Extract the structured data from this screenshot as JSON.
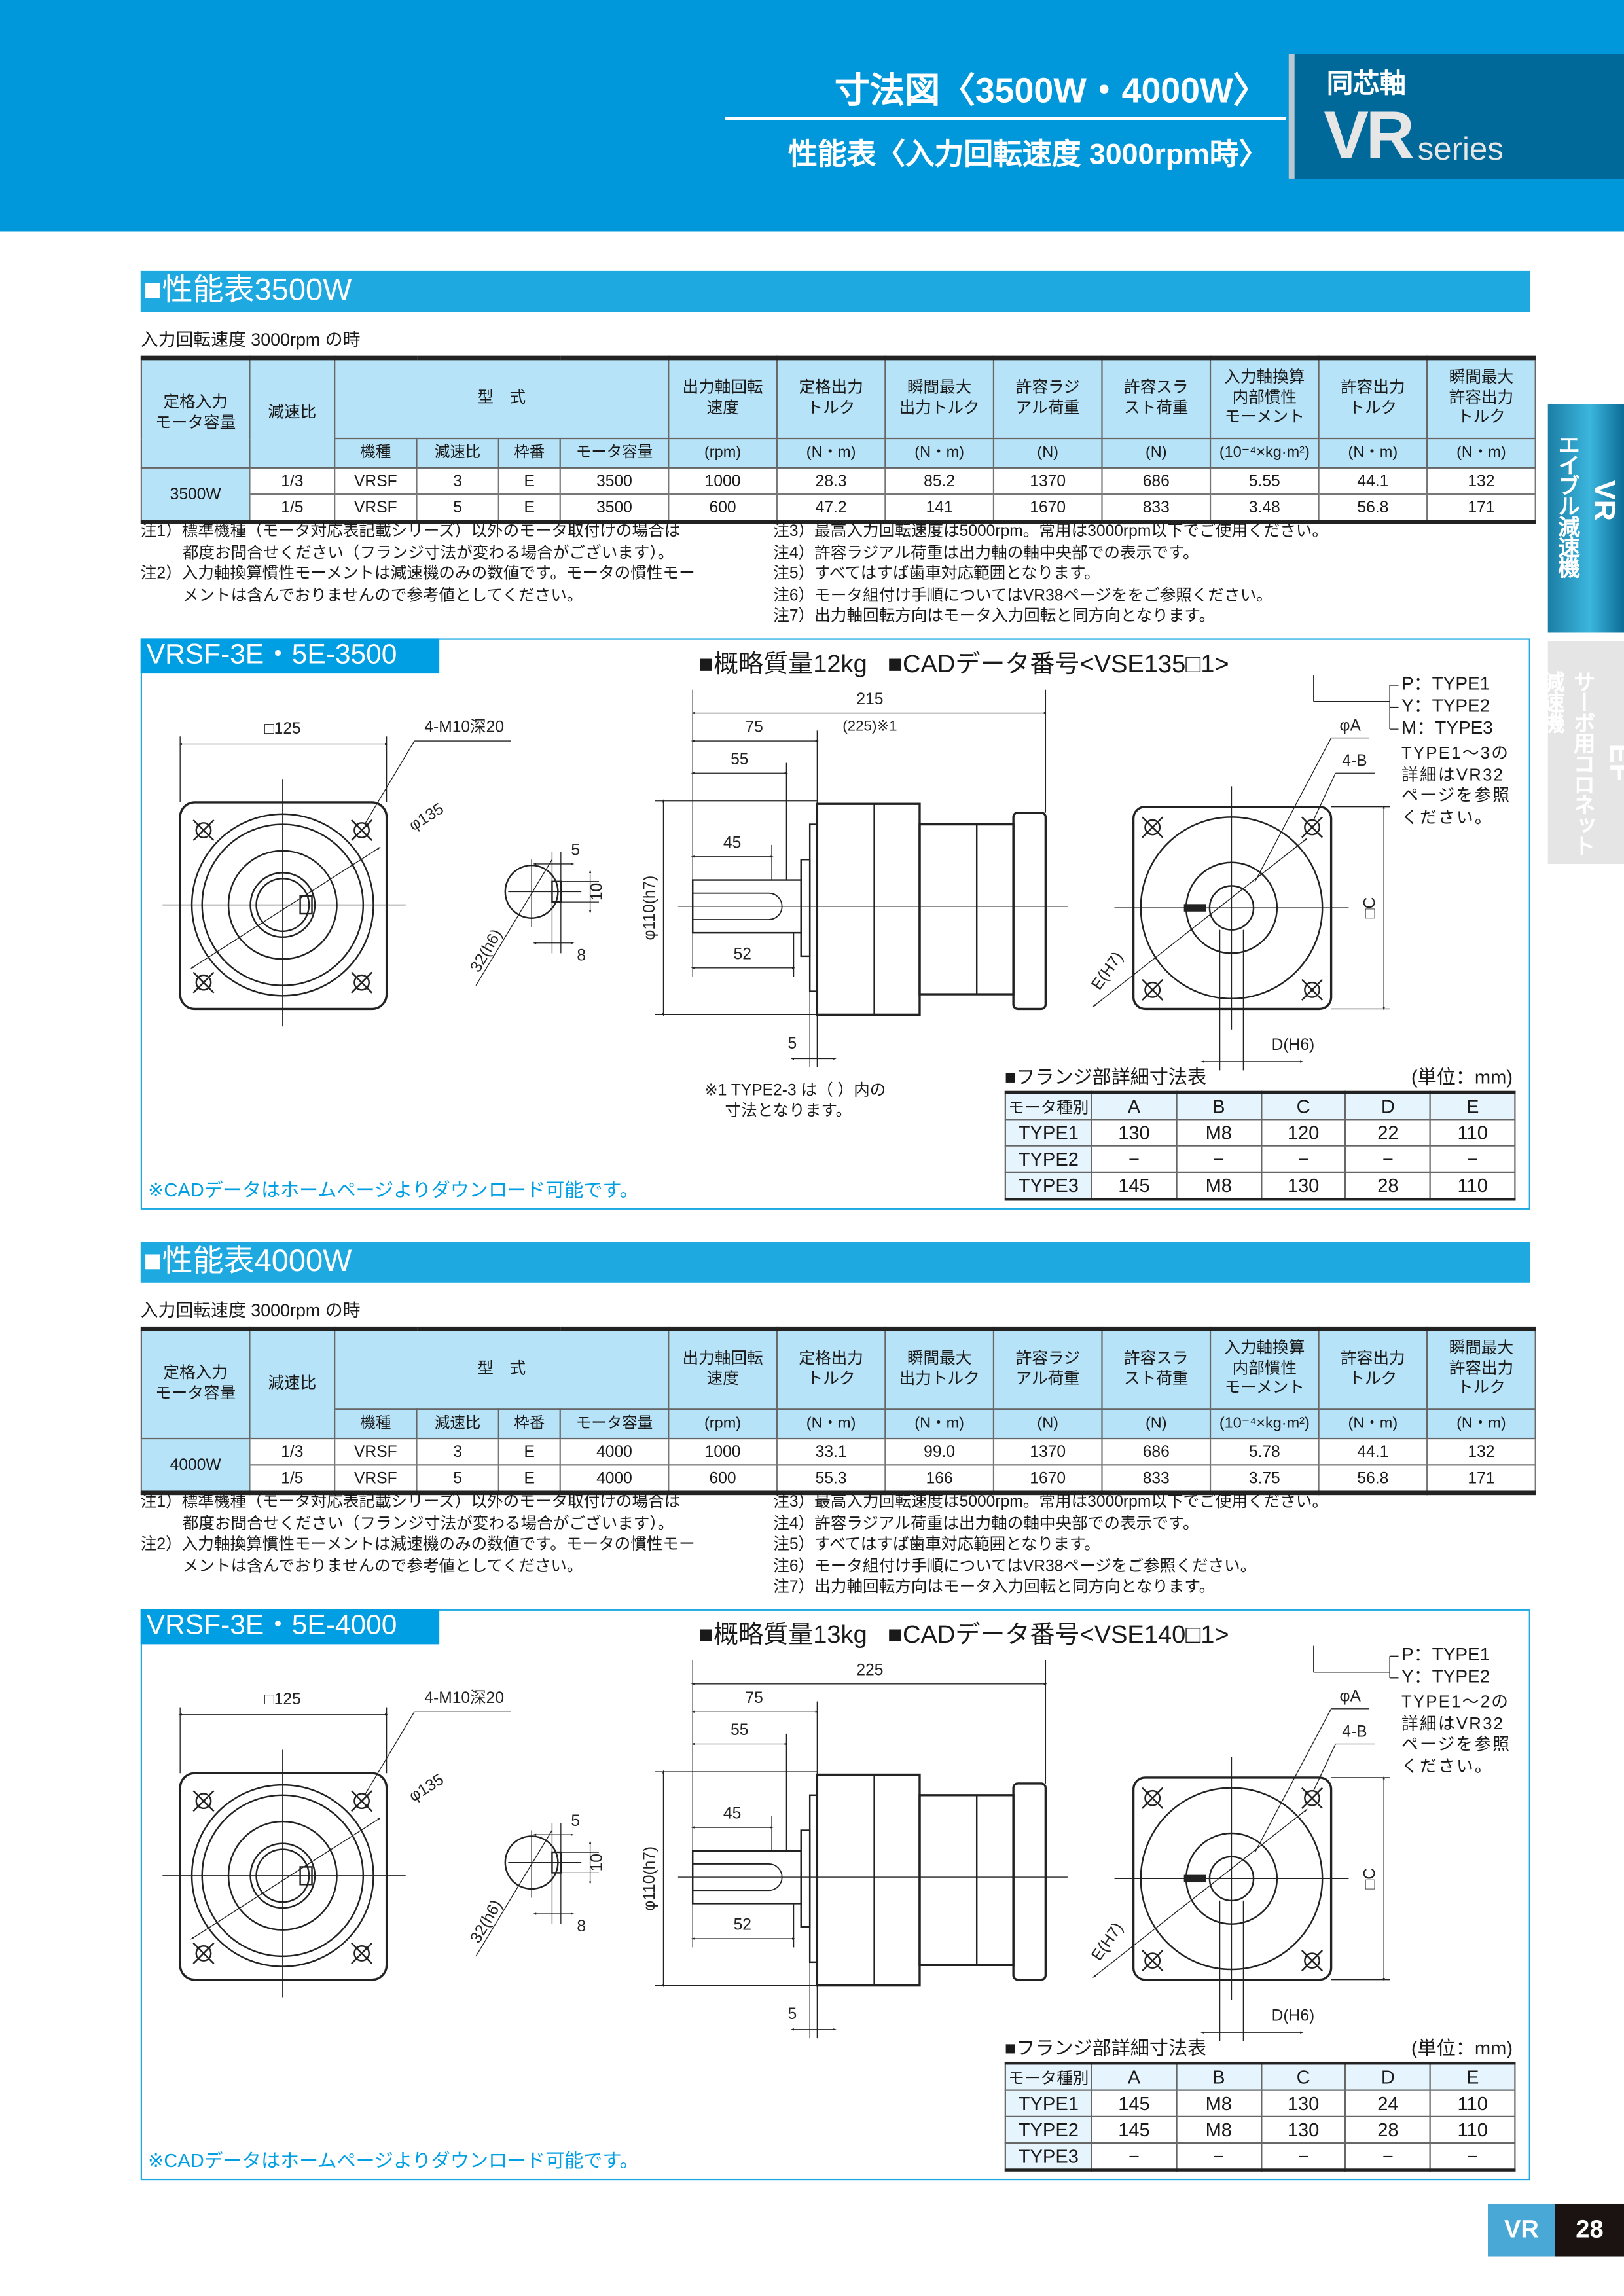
{
  "header": {
    "title_main": "寸法図〈3500W・4000W〉",
    "title_sub": "性能表〈入力回転速度 3000rpm時〉",
    "category": "同芯軸",
    "series_big": "VR",
    "series_small": "series"
  },
  "side_tabs": [
    {
      "label": "エイブル減速機",
      "letters": "VR",
      "active": true
    },
    {
      "label": "サーボ用コロネット減速機",
      "letters": "EF",
      "active": false
    }
  ],
  "perf_table_header": {
    "capacity": "定格入力\nモータ容量",
    "ratio": "減速比",
    "model_group": "型　式",
    "model_sub": [
      "機種",
      "減速比",
      "枠番",
      "モータ容量"
    ],
    "specs": [
      {
        "label": "出力軸回転\n速度",
        "unit": "(rpm)"
      },
      {
        "label": "定格出力\nトルク",
        "unit": "(N・m)"
      },
      {
        "label": "瞬間最大\n出力トルク",
        "unit": "(N・m)"
      },
      {
        "label": "許容ラジ\nアル荷重",
        "unit": "(N)"
      },
      {
        "label": "許容スラ\nスト荷重",
        "unit": "(N)"
      },
      {
        "label": "入力軸換算\n内部慣性\nモーメント",
        "unit": "(10⁻⁴×kg·m²)"
      },
      {
        "label": "許容出力\nトルク",
        "unit": "(N・m)"
      },
      {
        "label": "瞬間最大\n許容出力\nトルク",
        "unit": "(N・m)"
      }
    ]
  },
  "sections": [
    {
      "title": "■性能表3500W",
      "condition": "入力回転速度 3000rpm の時",
      "capacity": "3500W",
      "rows": [
        [
          "1/3",
          "VRSF",
          "3",
          "E",
          "3500",
          "1000",
          "28.3",
          "85.2",
          "1370",
          "686",
          "5.55",
          "44.1",
          "132"
        ],
        [
          "1/5",
          "VRSF",
          "5",
          "E",
          "3500",
          "600",
          "47.2",
          "141",
          "1670",
          "833",
          "3.48",
          "56.8",
          "171"
        ]
      ],
      "notes_left": [
        "注1）標準機種（モータ対応表記載シリーズ）以外のモータ取付けの場合は\n都度お問合せください（フランジ寸法が変わる場合がございます）。",
        "注2）入力軸換算慣性モーメントは減速機のみの数値です。モータの慣性モー\nメントは含んでおりませんので参考値としてください。"
      ],
      "notes_right": [
        "注3）最高入力回転速度は5000rpm。常用は3000rpm以下でご使用ください。",
        "注4）許容ラジアル荷重は出力軸の軸中央部での表示です。",
        "注5）すべてはすば歯車対応範囲となります。",
        "注6）モータ組付け手順についてはVR38ページををご参照ください。",
        "注7）出力軸回転方向はモータ入力回転と同方向となります。"
      ],
      "drawing": {
        "title": "VRSF-3E・5E-3500",
        "mass": "■概略質量12kg",
        "cad": "■CADデータ番号<VSE135□1>",
        "type_codes": [
          "P：TYPE1",
          "Y：TYPE2",
          "M：TYPE3"
        ],
        "type_note": "TYPE1〜3の\n詳細はVR32\nページを参照\nください。",
        "dims": {
          "sq": "□125",
          "tap": "4-M10深20",
          "pcd": "φ135",
          "key_w": "5",
          "key_h": "10",
          "key_off": "8",
          "shaft_d": "32(h6)",
          "spigot": "φ110(h7)",
          "total": "215",
          "total_alt": "(225)※1",
          "d75": "75",
          "d55": "55",
          "d45": "45",
          "d52": "52",
          "d5": "5",
          "phiA": "φA",
          "holes": "4-B",
          "E": "E(H7)",
          "C": "□C",
          "D": "D(H6)"
        },
        "footnote": "※1 TYPE2-3 は（ ）内の\n　 寸法となります。",
        "flange": {
          "title": "■フランジ部詳細寸法表",
          "unit": "(単位：mm)",
          "headers": [
            "モータ種別",
            "A",
            "B",
            "C",
            "D",
            "E"
          ],
          "rows": [
            [
              "TYPE1",
              "130",
              "M8",
              "120",
              "22",
              "110"
            ],
            [
              "TYPE2",
              "−",
              "−",
              "−",
              "−",
              "−"
            ],
            [
              "TYPE3",
              "145",
              "M8",
              "130",
              "28",
              "110"
            ]
          ]
        },
        "cad_note": "※CADデータはホームページよりダウンロード可能です。"
      }
    },
    {
      "title": "■性能表4000W",
      "condition": "入力回転速度 3000rpm の時",
      "capacity": "4000W",
      "rows": [
        [
          "1/3",
          "VRSF",
          "3",
          "E",
          "4000",
          "1000",
          "33.1",
          "99.0",
          "1370",
          "686",
          "5.78",
          "44.1",
          "132"
        ],
        [
          "1/5",
          "VRSF",
          "5",
          "E",
          "4000",
          "600",
          "55.3",
          "166",
          "1670",
          "833",
          "3.75",
          "56.8",
          "171"
        ]
      ],
      "notes_left": [
        "注1）標準機種（モータ対応表記載シリーズ）以外のモータ取付けの場合は\n都度お問合せください（フランジ寸法が変わる場合がございます）。",
        "注2）入力軸換算慣性モーメントは減速機のみの数値です。モータの慣性モー\nメントは含んでおりませんので参考値としてください。"
      ],
      "notes_right": [
        "注3）最高入力回転速度は5000rpm。常用は3000rpm以下でご使用ください。",
        "注4）許容ラジアル荷重は出力軸の軸中央部での表示です。",
        "注5）すべてはすば歯車対応範囲となります。",
        "注6）モータ組付け手順についてはVR38ページをご参照ください。",
        "注7）出力軸回転方向はモータ入力回転と同方向となります。"
      ],
      "drawing": {
        "title": "VRSF-3E・5E-4000",
        "mass": "■概略質量13kg",
        "cad": "■CADデータ番号<VSE140□1>",
        "type_codes": [
          "P：TYPE1",
          "Y：TYPE2"
        ],
        "type_note": "TYPE1〜2の\n詳細はVR32\nページを参照\nください。",
        "dims": {
          "sq": "□125",
          "tap": "4-M10深20",
          "pcd": "φ135",
          "key_w": "5",
          "key_h": "10",
          "key_off": "8",
          "shaft_d": "32(h6)",
          "spigot": "φ110(h7)",
          "total": "225",
          "d75": "75",
          "d55": "55",
          "d45": "45",
          "d52": "52",
          "d5": "5",
          "phiA": "φA",
          "holes": "4-B",
          "E": "E(H7)",
          "C": "□C",
          "D": "D(H6)"
        },
        "flange": {
          "title": "■フランジ部詳細寸法表",
          "unit": "(単位：mm)",
          "headers": [
            "モータ種別",
            "A",
            "B",
            "C",
            "D",
            "E"
          ],
          "rows": [
            [
              "TYPE1",
              "145",
              "M8",
              "130",
              "24",
              "110"
            ],
            [
              "TYPE2",
              "145",
              "M8",
              "130",
              "28",
              "110"
            ],
            [
              "TYPE3",
              "−",
              "−",
              "−",
              "−",
              "−"
            ]
          ]
        },
        "cad_note": "※CADデータはホームページよりダウンロード可能です。"
      }
    }
  ],
  "footer": {
    "series": "VR",
    "page": "28"
  },
  "colors": {
    "header_blue": "#0098da",
    "section_bar": "#1ea9e1",
    "title_box": "#00699a",
    "table_header": "#b7e3f8",
    "cad_note": "#009fe3"
  }
}
